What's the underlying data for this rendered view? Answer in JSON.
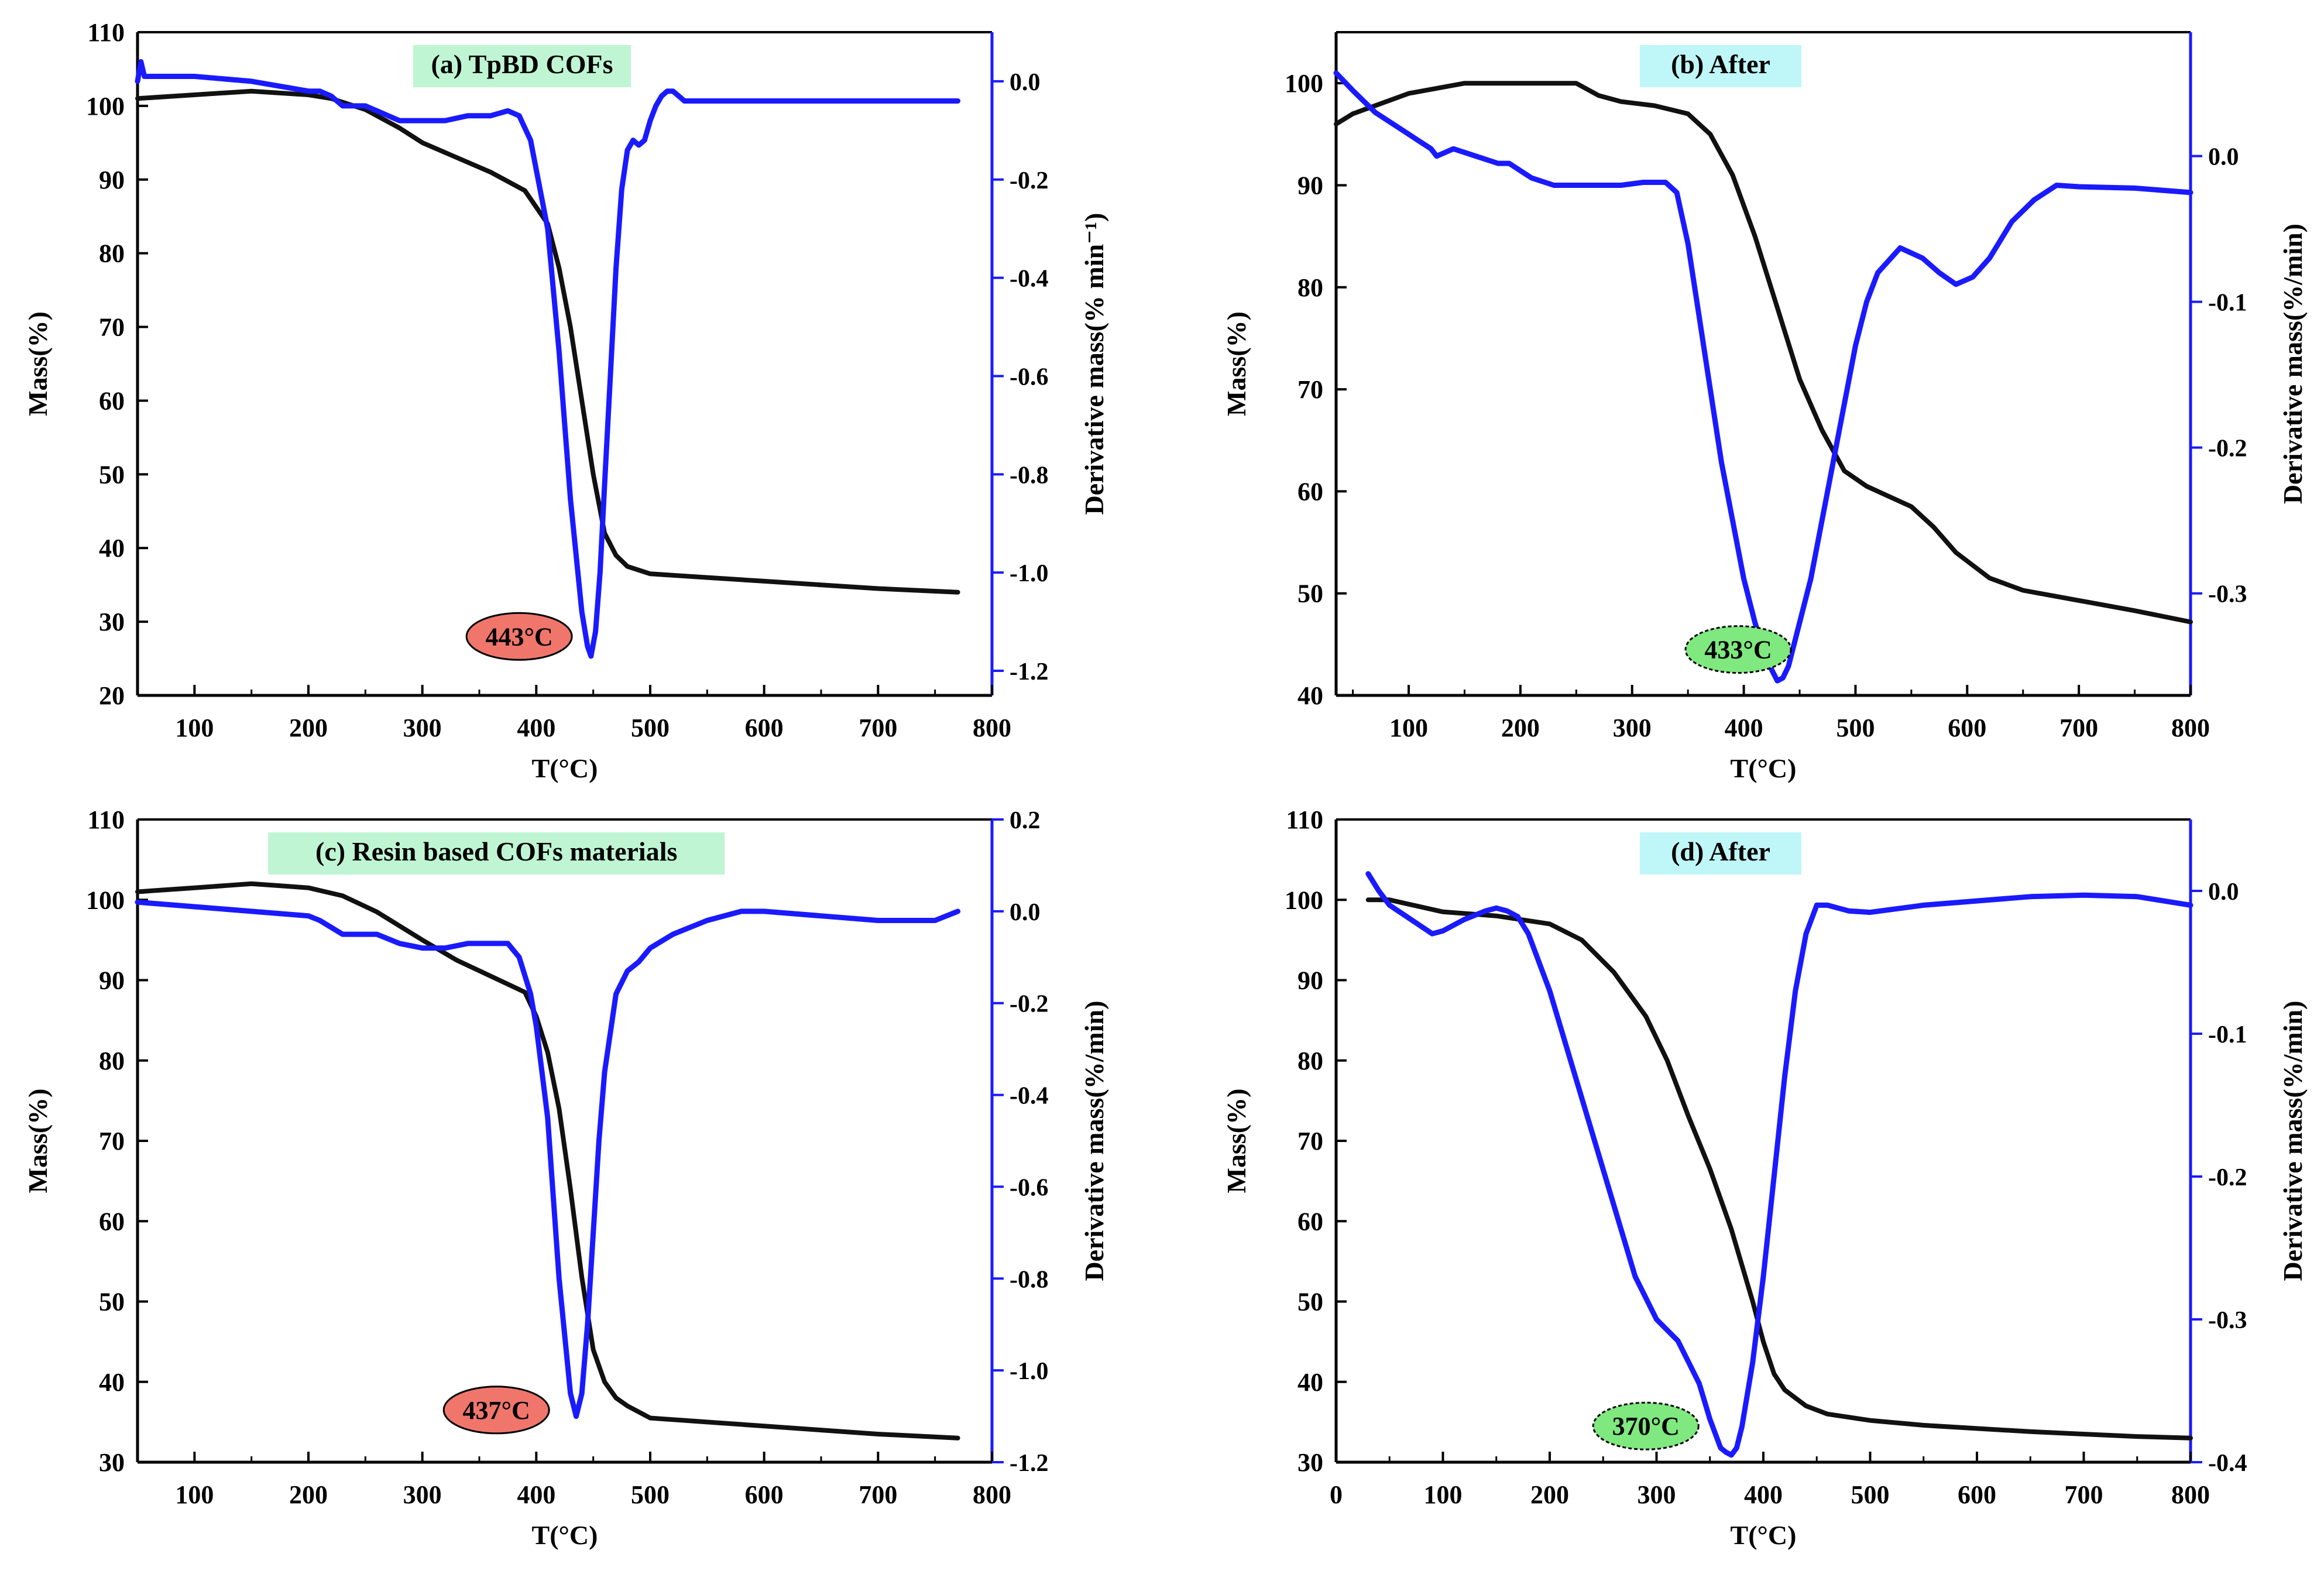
{
  "colors": {
    "mass": "#111111",
    "derivative": "#1a1aff",
    "green_box": "#bff5d3",
    "cyan_box": "#bff6f8",
    "red_ellipse": "#f0766b",
    "green_ellipse": "#7fe87f"
  },
  "chart_data": [
    {
      "type": "line",
      "panel": "a",
      "title": "(a) TpBD COFs",
      "title_style": "green",
      "xlabel": "T(°C)",
      "ylabel": "Mass(%)",
      "ylabel_right": "Derivative mass(% min⁻¹)",
      "xlim": [
        50,
        800
      ],
      "ylim": [
        20,
        110
      ],
      "ylim_right": [
        -1.25,
        0.1
      ],
      "xticks": [
        100,
        200,
        300,
        400,
        500,
        600,
        700,
        800
      ],
      "yticks": [
        20,
        30,
        40,
        50,
        60,
        70,
        80,
        90,
        100,
        110
      ],
      "yticks_right": [
        -1.2,
        -1.0,
        -0.8,
        -0.6,
        -0.4,
        -0.2,
        0.0
      ],
      "right_tick_labels": [
        "-1.2",
        "-1.0",
        "-0.8",
        "-0.6",
        "-0.4",
        "-0.2",
        "0.0"
      ],
      "annotation": {
        "text": "443°C",
        "x": 385,
        "y": 28,
        "style": "red"
      },
      "series": [
        {
          "name": "Mass",
          "axis": "left",
          "x": [
            50,
            100,
            150,
            200,
            220,
            250,
            280,
            300,
            330,
            360,
            390,
            410,
            420,
            430,
            440,
            450,
            460,
            470,
            480,
            500,
            550,
            600,
            650,
            700,
            770
          ],
          "y": [
            101,
            101.5,
            102,
            101.5,
            101,
            99.5,
            97,
            95,
            93,
            91,
            88.5,
            84,
            78,
            70,
            60,
            50,
            42,
            39,
            37.5,
            36.5,
            36,
            35.5,
            35,
            34.5,
            34
          ]
        },
        {
          "name": "Derivative mass",
          "axis": "right",
          "x": [
            50,
            53,
            56,
            60,
            100,
            150,
            200,
            210,
            220,
            225,
            230,
            240,
            250,
            260,
            270,
            280,
            300,
            320,
            340,
            360,
            375,
            385,
            395,
            400,
            410,
            420,
            430,
            440,
            445,
            448,
            452,
            456,
            460,
            465,
            470,
            475,
            480,
            485,
            490,
            495,
            500,
            505,
            510,
            515,
            520,
            525,
            530,
            540,
            560,
            600,
            650,
            700,
            770
          ],
          "y": [
            0.0,
            0.04,
            0.01,
            0.01,
            0.01,
            0.0,
            -0.02,
            -0.02,
            -0.03,
            -0.04,
            -0.05,
            -0.05,
            -0.05,
            -0.06,
            -0.07,
            -0.08,
            -0.08,
            -0.08,
            -0.07,
            -0.07,
            -0.06,
            -0.07,
            -0.12,
            -0.18,
            -0.3,
            -0.55,
            -0.85,
            -1.08,
            -1.15,
            -1.17,
            -1.12,
            -1.0,
            -0.82,
            -0.6,
            -0.38,
            -0.22,
            -0.14,
            -0.12,
            -0.13,
            -0.12,
            -0.08,
            -0.05,
            -0.03,
            -0.02,
            -0.02,
            -0.03,
            -0.04,
            -0.04,
            -0.04,
            -0.04,
            -0.04,
            -0.04,
            -0.04
          ]
        }
      ]
    },
    {
      "type": "line",
      "panel": "b",
      "title": "(b) After",
      "title_style": "cyan",
      "xlabel": "T(°C)",
      "ylabel": "Mass(%)",
      "ylabel_right": "Derivative mass(%/min)",
      "xlim": [
        35,
        800
      ],
      "ylim": [
        40,
        105
      ],
      "ylim_right": [
        -0.37,
        0.085
      ],
      "xticks": [
        100,
        200,
        300,
        400,
        500,
        600,
        700,
        800
      ],
      "yticks": [
        40,
        50,
        60,
        70,
        80,
        90,
        100
      ],
      "yticks_right": [
        -0.3,
        -0.2,
        -0.1,
        0.0
      ],
      "right_tick_labels": [
        "-0.3",
        "-0.2",
        "-0.1",
        "0.0"
      ],
      "annotation": {
        "text": "433°C",
        "x": 395,
        "y": 44.5,
        "style": "green"
      },
      "series": [
        {
          "name": "Mass",
          "axis": "left",
          "x": [
            35,
            50,
            100,
            150,
            200,
            250,
            270,
            290,
            320,
            350,
            370,
            390,
            410,
            430,
            450,
            470,
            490,
            510,
            530,
            550,
            570,
            590,
            620,
            650,
            700,
            750,
            800
          ],
          "y": [
            96,
            97,
            99,
            100,
            100,
            100,
            98.8,
            98.2,
            97.8,
            97,
            95,
            91,
            85,
            78,
            71,
            66,
            62,
            60.5,
            59.5,
            58.5,
            56.5,
            54,
            51.5,
            50.3,
            49.3,
            48.3,
            47.2
          ]
        },
        {
          "name": "Derivative mass",
          "axis": "right",
          "x": [
            35,
            50,
            70,
            90,
            110,
            120,
            125,
            140,
            160,
            180,
            190,
            200,
            210,
            230,
            250,
            270,
            290,
            310,
            330,
            340,
            350,
            360,
            370,
            380,
            390,
            400,
            410,
            420,
            430,
            435,
            440,
            450,
            460,
            470,
            480,
            490,
            500,
            510,
            520,
            540,
            560,
            575,
            590,
            605,
            620,
            640,
            660,
            680,
            700,
            750,
            800
          ],
          "y": [
            0.057,
            0.045,
            0.03,
            0.02,
            0.01,
            0.005,
            0.0,
            0.005,
            0.0,
            -0.005,
            -0.005,
            -0.01,
            -0.015,
            -0.02,
            -0.02,
            -0.02,
            -0.02,
            -0.018,
            -0.018,
            -0.025,
            -0.06,
            -0.11,
            -0.16,
            -0.21,
            -0.25,
            -0.29,
            -0.32,
            -0.345,
            -0.36,
            -0.358,
            -0.35,
            -0.32,
            -0.29,
            -0.25,
            -0.21,
            -0.17,
            -0.13,
            -0.1,
            -0.08,
            -0.063,
            -0.07,
            -0.08,
            -0.088,
            -0.083,
            -0.07,
            -0.045,
            -0.03,
            -0.02,
            -0.021,
            -0.022,
            -0.025
          ]
        }
      ]
    },
    {
      "type": "line",
      "panel": "c",
      "title": "(c) Resin based COFs materials",
      "title_style": "green",
      "xlabel": "T(°C)",
      "ylabel": "Mass(%)",
      "ylabel_right": "Derivative mass(%/min)",
      "xlim": [
        50,
        800
      ],
      "ylim": [
        30,
        110
      ],
      "ylim_right": [
        -1.2,
        0.2
      ],
      "xticks": [
        100,
        200,
        300,
        400,
        500,
        600,
        700,
        800
      ],
      "yticks": [
        30,
        40,
        50,
        60,
        70,
        80,
        90,
        100,
        110
      ],
      "yticks_right": [
        -1.2,
        -1.0,
        -0.8,
        -0.6,
        -0.4,
        -0.2,
        0.0,
        0.2
      ],
      "right_tick_labels": [
        "-1.2",
        "-1.0",
        "-0.8",
        "-0.6",
        "-0.4",
        "-0.2",
        "0.0",
        "0.2"
      ],
      "annotation": {
        "text": "437°C",
        "x": 365,
        "y": 36.5,
        "style": "red"
      },
      "series": [
        {
          "name": "Mass",
          "axis": "left",
          "x": [
            50,
            100,
            150,
            200,
            230,
            260,
            300,
            330,
            360,
            390,
            400,
            410,
            420,
            430,
            440,
            450,
            460,
            470,
            480,
            500,
            550,
            600,
            650,
            700,
            770
          ],
          "y": [
            101,
            101.5,
            102,
            101.5,
            100.5,
            98.5,
            95,
            92.5,
            90.5,
            88.5,
            85.5,
            81,
            74,
            64,
            53,
            44,
            40,
            38,
            37,
            35.5,
            35,
            34.5,
            34,
            33.5,
            33
          ]
        },
        {
          "name": "Derivative mass",
          "axis": "right",
          "x": [
            50,
            100,
            150,
            200,
            210,
            230,
            250,
            260,
            280,
            300,
            320,
            340,
            360,
            375,
            385,
            395,
            400,
            410,
            420,
            430,
            435,
            440,
            445,
            450,
            455,
            460,
            470,
            480,
            490,
            500,
            520,
            550,
            580,
            600,
            650,
            700,
            750,
            770
          ],
          "y": [
            0.02,
            0.01,
            0.0,
            -0.01,
            -0.02,
            -0.05,
            -0.05,
            -0.05,
            -0.07,
            -0.08,
            -0.08,
            -0.07,
            -0.07,
            -0.07,
            -0.1,
            -0.18,
            -0.25,
            -0.45,
            -0.8,
            -1.05,
            -1.1,
            -1.05,
            -0.9,
            -0.7,
            -0.5,
            -0.35,
            -0.18,
            -0.13,
            -0.11,
            -0.08,
            -0.05,
            -0.02,
            0.0,
            0.0,
            -0.01,
            -0.02,
            -0.02,
            0.0
          ]
        }
      ]
    },
    {
      "type": "line",
      "panel": "d",
      "title": "(d) After",
      "title_style": "cyan",
      "xlabel": "T(°C)",
      "ylabel": "Mass(%)",
      "ylabel_right": "Derivative mass(%/min)",
      "xlim": [
        0,
        800
      ],
      "ylim": [
        30,
        110
      ],
      "ylim_right": [
        -0.4,
        0.05
      ],
      "xticks": [
        0,
        100,
        200,
        300,
        400,
        500,
        600,
        700,
        800
      ],
      "yticks": [
        30,
        40,
        50,
        60,
        70,
        80,
        90,
        100,
        110
      ],
      "yticks_right": [
        -0.4,
        -0.3,
        -0.2,
        -0.1,
        0.0
      ],
      "right_tick_labels": [
        "-0.4",
        "-0.3",
        "-0.2",
        "-0.1",
        "0.0"
      ],
      "annotation": {
        "text": "370°C",
        "x": 290,
        "y": 34.5,
        "style": "green"
      },
      "series": [
        {
          "name": "Mass",
          "axis": "left",
          "x": [
            30,
            50,
            100,
            150,
            200,
            230,
            260,
            290,
            310,
            330,
            350,
            370,
            390,
            400,
            410,
            420,
            440,
            460,
            500,
            550,
            600,
            650,
            700,
            750,
            800
          ],
          "y": [
            100,
            100,
            98.5,
            98,
            97,
            95,
            91,
            85.5,
            80,
            73,
            66.5,
            59,
            50,
            45,
            41,
            39,
            37,
            36,
            35.2,
            34.6,
            34.2,
            33.8,
            33.5,
            33.2,
            33
          ]
        },
        {
          "name": "Derivative mass",
          "axis": "right",
          "x": [
            30,
            40,
            50,
            70,
            90,
            100,
            120,
            140,
            150,
            160,
            170,
            180,
            200,
            220,
            240,
            260,
            280,
            300,
            320,
            330,
            340,
            350,
            360,
            365,
            370,
            375,
            380,
            390,
            400,
            410,
            420,
            430,
            440,
            450,
            455,
            460,
            470,
            480,
            500,
            550,
            600,
            650,
            700,
            750,
            800
          ],
          "y": [
            0.012,
            0.0,
            -0.01,
            -0.02,
            -0.03,
            -0.028,
            -0.02,
            -0.014,
            -0.012,
            -0.014,
            -0.018,
            -0.03,
            -0.07,
            -0.12,
            -0.17,
            -0.22,
            -0.27,
            -0.3,
            -0.315,
            -0.33,
            -0.345,
            -0.37,
            -0.39,
            -0.393,
            -0.395,
            -0.39,
            -0.375,
            -0.33,
            -0.27,
            -0.2,
            -0.13,
            -0.07,
            -0.03,
            -0.01,
            -0.01,
            -0.01,
            -0.012,
            -0.014,
            -0.015,
            -0.01,
            -0.007,
            -0.004,
            -0.003,
            -0.004,
            -0.01
          ]
        }
      ]
    }
  ]
}
